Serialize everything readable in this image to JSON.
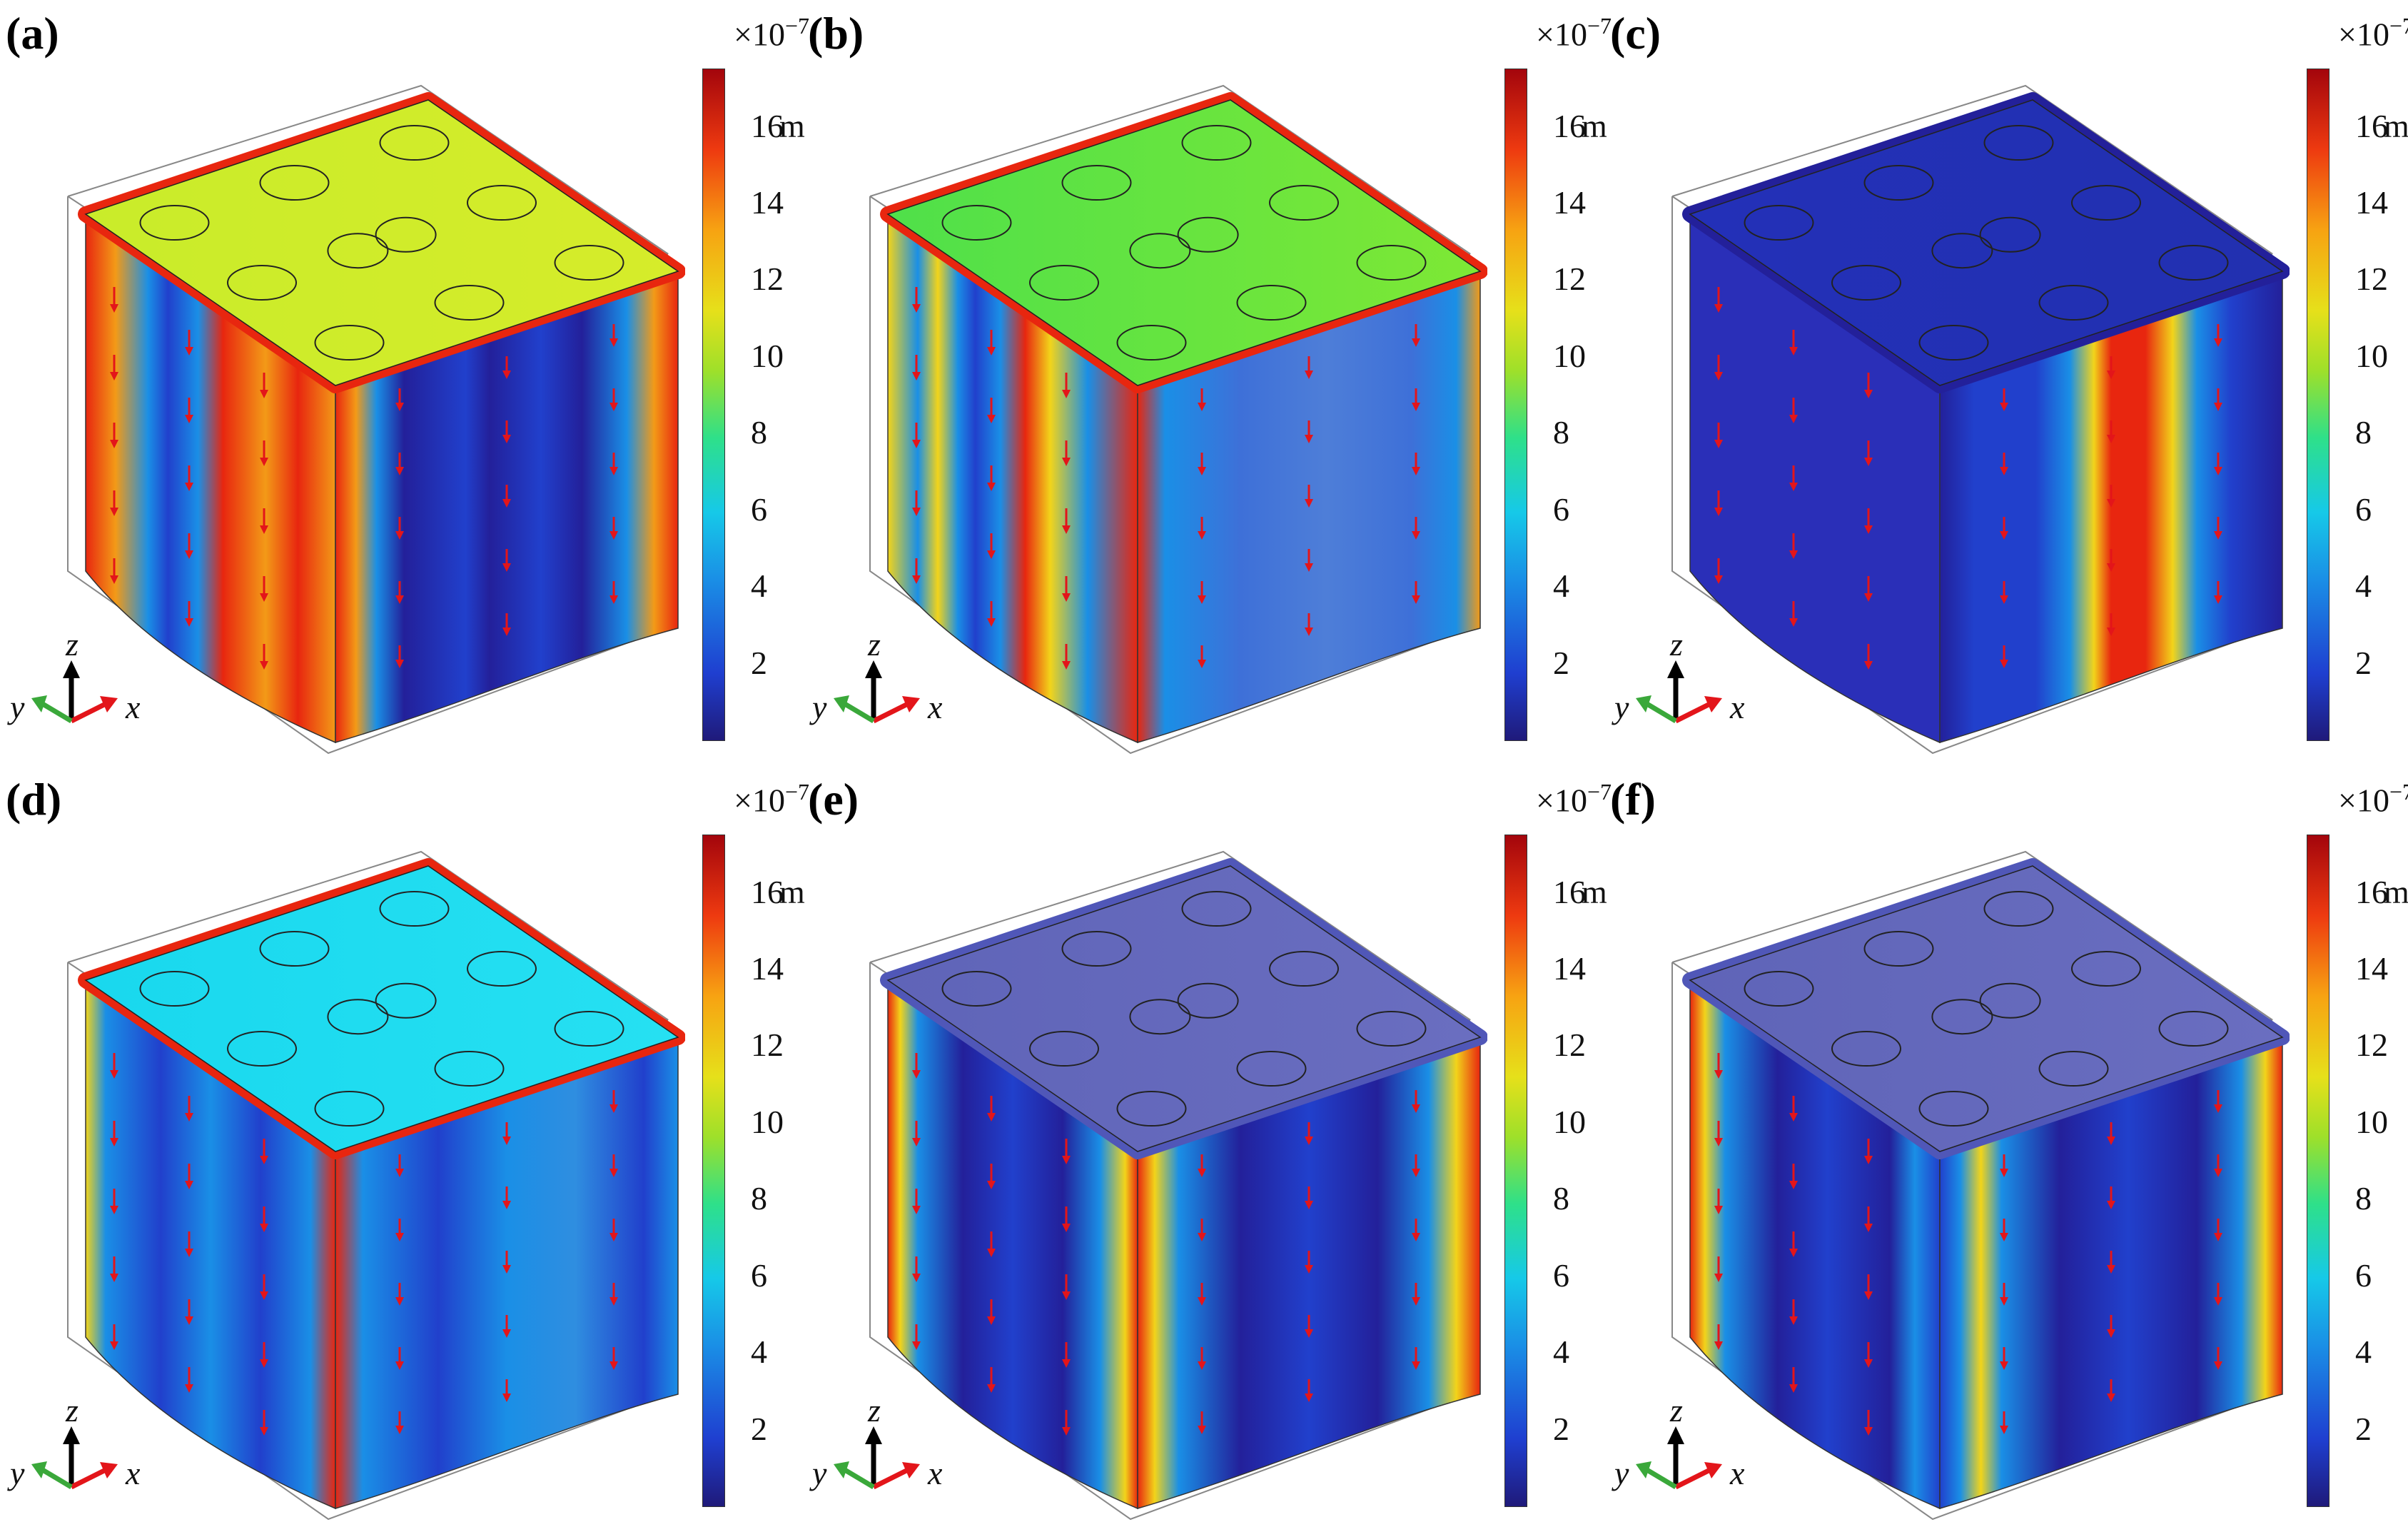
{
  "panels": [
    {
      "label": "(a)",
      "scheme": "a"
    },
    {
      "label": "(b)",
      "scheme": "b"
    },
    {
      "label": "(c)",
      "scheme": "c"
    },
    {
      "label": "(d)",
      "scheme": "d"
    },
    {
      "label": "(e)",
      "scheme": "e"
    },
    {
      "label": "(f)",
      "scheme": "f"
    }
  ],
  "colorbar": {
    "exponent_base": "×10",
    "exponent": "−7",
    "ticks": [
      "2",
      "4",
      "6",
      "8",
      "10",
      "12",
      "14",
      "16"
    ],
    "unit": "m",
    "colors": [
      "#1f1a7a",
      "#1f3fd0",
      "#1a8fe6",
      "#16c9e8",
      "#2ee08a",
      "#9ee02a",
      "#e6e01a",
      "#f7a312",
      "#ee3a10",
      "#a3050c"
    ]
  },
  "axes": {
    "z": "z",
    "x": "x",
    "y": "y",
    "z_color": "#000000",
    "x_color": "#e3151a",
    "y_color": "#3aa83a"
  },
  "arrow_color": "#e3151a"
}
